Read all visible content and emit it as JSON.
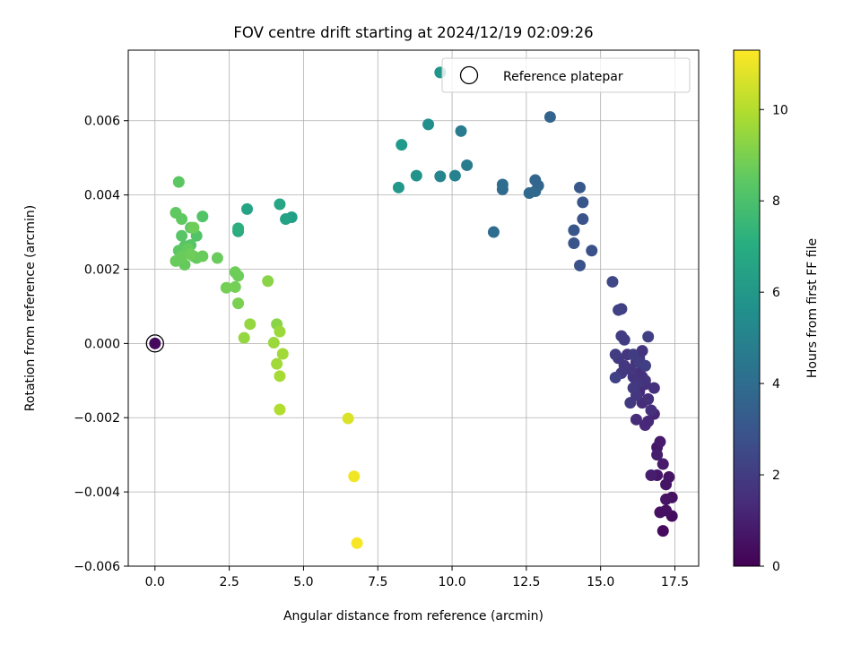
{
  "chart_data": {
    "type": "scatter",
    "title": "FOV centre drift starting at 2024/12/19 02:09:26",
    "xlabel": "Angular distance from reference (arcmin)",
    "ylabel": "Rotation from reference (arcmin)",
    "xlim": [
      -0.9,
      18.3
    ],
    "ylim": [
      -0.006,
      0.0079
    ],
    "x_ticks": [
      0,
      2.5,
      5,
      7.5,
      10,
      12.5,
      15,
      17.5
    ],
    "x_tick_labels": [
      "0.0",
      "2.5",
      "5.0",
      "7.5",
      "10.0",
      "12.5",
      "15.0",
      "17.5"
    ],
    "y_ticks": [
      -0.006,
      -0.004,
      -0.002,
      0,
      0.002,
      0.004,
      0.006
    ],
    "y_tick_labels": [
      "−0.006",
      "−0.004",
      "−0.002",
      "0.000",
      "0.002",
      "0.004",
      "0.006"
    ],
    "grid": true,
    "legend": {
      "placement": "top-right",
      "entries": [
        "Reference platepar"
      ]
    },
    "reference_point": {
      "x": 0,
      "y": 0
    },
    "colorbar": {
      "label": "Hours from first FF file",
      "range": [
        0,
        11.3
      ],
      "ticks": [
        0,
        2,
        4,
        6,
        8,
        10
      ],
      "tick_labels": [
        "0",
        "2",
        "4",
        "6",
        "8",
        "10"
      ],
      "colormap": "viridis"
    },
    "series": [
      {
        "x": [
          0.0,
          17.1,
          17.4,
          17.2,
          17.4,
          17.0,
          17.2,
          17.3,
          17.2,
          16.9,
          16.9,
          17.0,
          17.1,
          16.7,
          16.9,
          16.8,
          16.6,
          16.5,
          16.2,
          16.4,
          16.3,
          16.5,
          16.4,
          16.7,
          16.6,
          16.3,
          16.5,
          16.8,
          16.2,
          16.4,
          16.1,
          16.3,
          16.5,
          16.2,
          16.0,
          16.2,
          15.9,
          15.8,
          16.1,
          16.0,
          15.7,
          15.6,
          15.5,
          15.8,
          15.7,
          16.1,
          16.3,
          16.5,
          16.6,
          15.7,
          15.6,
          15.5,
          15.4,
          14.7,
          14.3,
          14.1,
          14.4,
          14.1,
          14.4,
          14.3,
          13.3,
          12.8,
          12.9,
          12.6,
          12.8,
          11.7,
          11.4,
          11.7,
          10.5,
          10.3,
          10.1,
          9.6,
          9.6,
          9.2,
          8.8,
          8.2,
          8.3,
          4.6,
          4.4,
          4.2,
          3.1,
          2.8,
          2.8,
          1.6,
          1.4,
          1.2,
          1.0,
          0.8,
          0.9,
          0.7,
          0.8,
          0.9,
          1.2,
          1.1,
          1.3,
          1.4,
          1.6,
          1.0,
          0.9,
          1.2,
          0.7,
          1.3,
          2.1,
          2.7,
          2.8,
          2.4,
          2.7,
          2.8,
          3.2,
          3.0,
          3.8,
          4.1,
          4.2,
          4.0,
          4.3,
          4.1,
          4.2,
          4.2,
          6.5,
          6.7,
          6.8
        ],
        "y": [
          0.0,
          -0.00505,
          -0.00465,
          -0.0045,
          -0.00415,
          -0.00455,
          -0.0042,
          -0.0036,
          -0.0038,
          -0.00355,
          -0.0028,
          -0.00265,
          -0.00325,
          -0.00355,
          -0.003,
          -0.0019,
          -0.0021,
          -0.0022,
          -0.00205,
          -0.0016,
          -0.0013,
          -0.0011,
          -0.0009,
          -0.0018,
          -0.0015,
          -0.0008,
          -0.0006,
          -0.0012,
          -0.0005,
          -0.0002,
          -0.0009,
          -0.0004,
          -0.001,
          -0.0014,
          -0.0007,
          -0.0011,
          -0.0003,
          -0.0006,
          -0.0012,
          -0.0016,
          -0.0008,
          -0.0004,
          -0.0003,
          0.0001,
          0.0002,
          -0.0003,
          -0.0005,
          -0.0006,
          0.00018,
          0.00093,
          0.0009,
          -0.00092,
          0.00166,
          0.0025,
          0.0021,
          0.0027,
          0.00335,
          0.00305,
          0.0038,
          0.0042,
          0.0061,
          0.0044,
          0.00425,
          0.00405,
          0.0041,
          0.00415,
          0.003,
          0.00428,
          0.0048,
          0.00572,
          0.00452,
          0.0045,
          0.0073,
          0.0059,
          0.00452,
          0.0042,
          0.00535,
          0.0034,
          0.00335,
          0.00375,
          0.00362,
          0.00302,
          0.0031,
          0.00342,
          0.0029,
          0.00265,
          0.00262,
          0.0025,
          0.0029,
          0.00352,
          0.00435,
          0.00335,
          0.00312,
          0.00255,
          0.00235,
          0.0023,
          0.00235,
          0.00212,
          0.00235,
          0.0024,
          0.00222,
          0.00312,
          0.0023,
          0.00192,
          0.00182,
          0.0015,
          0.00152,
          0.00108,
          0.00052,
          0.00015,
          0.00168,
          0.00052,
          0.00032,
          2e-05,
          -0.00028,
          -0.00055,
          -0.00088,
          -0.00178,
          -0.00202,
          -0.00358,
          -0.00538
        ],
        "hours": [
          0.3,
          0.3,
          0.4,
          0.5,
          0.5,
          0.5,
          0.6,
          0.6,
          0.6,
          0.7,
          0.7,
          0.8,
          0.8,
          0.9,
          0.9,
          1.2,
          1.3,
          1.3,
          1.4,
          1.4,
          1.4,
          1.5,
          1.5,
          1.5,
          1.5,
          1.6,
          1.6,
          1.6,
          1.6,
          1.7,
          1.7,
          1.7,
          1.7,
          1.8,
          1.8,
          1.8,
          1.8,
          1.8,
          1.9,
          1.9,
          1.9,
          1.9,
          2.0,
          2.0,
          2.0,
          2.0,
          2.0,
          2.1,
          2.1,
          2.1,
          2.2,
          2.2,
          2.4,
          2.8,
          2.8,
          2.9,
          2.9,
          3.0,
          3.0,
          3.1,
          3.6,
          3.7,
          3.7,
          3.8,
          3.8,
          3.9,
          4.0,
          4.0,
          4.7,
          4.7,
          5.0,
          5.1,
          5.9,
          5.6,
          5.8,
          6.0,
          6.1,
          6.4,
          6.5,
          6.7,
          6.6,
          6.9,
          7.1,
          8.2,
          8.2,
          8.3,
          8.3,
          8.4,
          8.3,
          8.5,
          8.4,
          8.5,
          8.5,
          8.6,
          8.6,
          8.6,
          8.7,
          8.6,
          8.7,
          8.8,
          8.7,
          8.8,
          8.7,
          8.8,
          8.8,
          8.9,
          8.9,
          9.0,
          9.5,
          9.5,
          9.3,
          9.3,
          9.6,
          9.6,
          9.7,
          9.7,
          9.8,
          10.0,
          10.7,
          11.1,
          11.2
        ]
      }
    ]
  }
}
